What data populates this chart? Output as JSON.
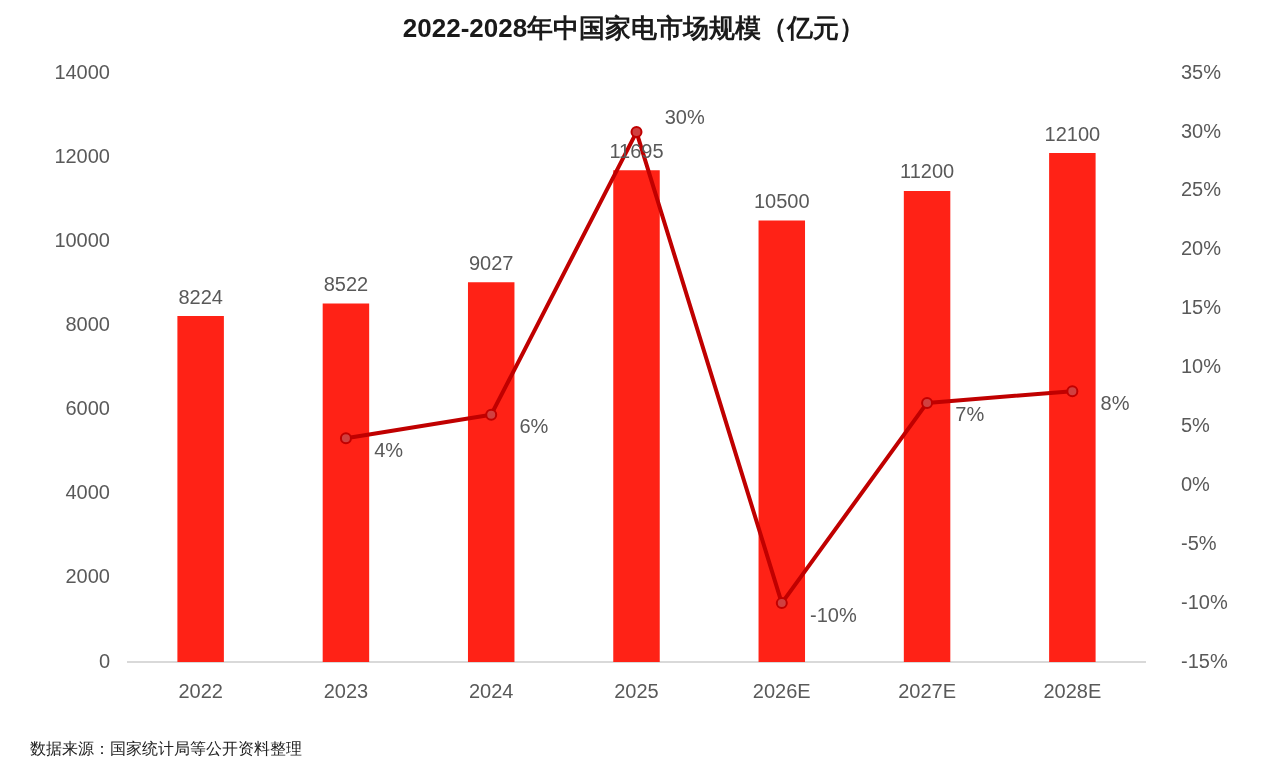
{
  "chart_data": {
    "type": "bar",
    "title": "2022-2028年中国家电市场规模（亿元）",
    "categories": [
      "2022",
      "2023",
      "2024",
      "2025",
      "2026E",
      "2027E",
      "2028E"
    ],
    "series": [
      {
        "color": "#ff2216",
        "values": [
          8224,
          8522,
          9027,
          11695,
          10500,
          11200,
          12100
        ],
        "value_labels": [
          "8224",
          "8522",
          "9027",
          "11695",
          "10500",
          "11200",
          "12100"
        ]
      },
      {
        "type": "line",
        "axis": "y2",
        "color": "#c00000",
        "marker": "circle",
        "values": [
          null,
          4,
          6,
          30,
          -10,
          7,
          8
        ],
        "value_labels": [
          null,
          "4%",
          "6%",
          "30%",
          "-10%",
          "7%",
          "8%"
        ]
      }
    ],
    "ylim": [
      0,
      14000
    ],
    "yticks": [
      0,
      2000,
      4000,
      6000,
      8000,
      10000,
      12000,
      14000
    ],
    "y2lim": [
      -15,
      35
    ],
    "y2ticks": [
      {
        "value": -15,
        "label": "-15%"
      },
      {
        "value": -10,
        "label": "-10%"
      },
      {
        "value": -5,
        "label": "-5%"
      },
      {
        "value": 0,
        "label": "0%"
      },
      {
        "value": 5,
        "label": "5%"
      },
      {
        "value": 10,
        "label": "10%"
      },
      {
        "value": 15,
        "label": "15%"
      },
      {
        "value": 20,
        "label": "20%"
      },
      {
        "value": 25,
        "label": "25%"
      },
      {
        "value": 30,
        "label": "30%"
      },
      {
        "value": 35,
        "label": "35%"
      }
    ],
    "annotations": [
      "数据来源：国家统计局等公开资料整理"
    ]
  }
}
